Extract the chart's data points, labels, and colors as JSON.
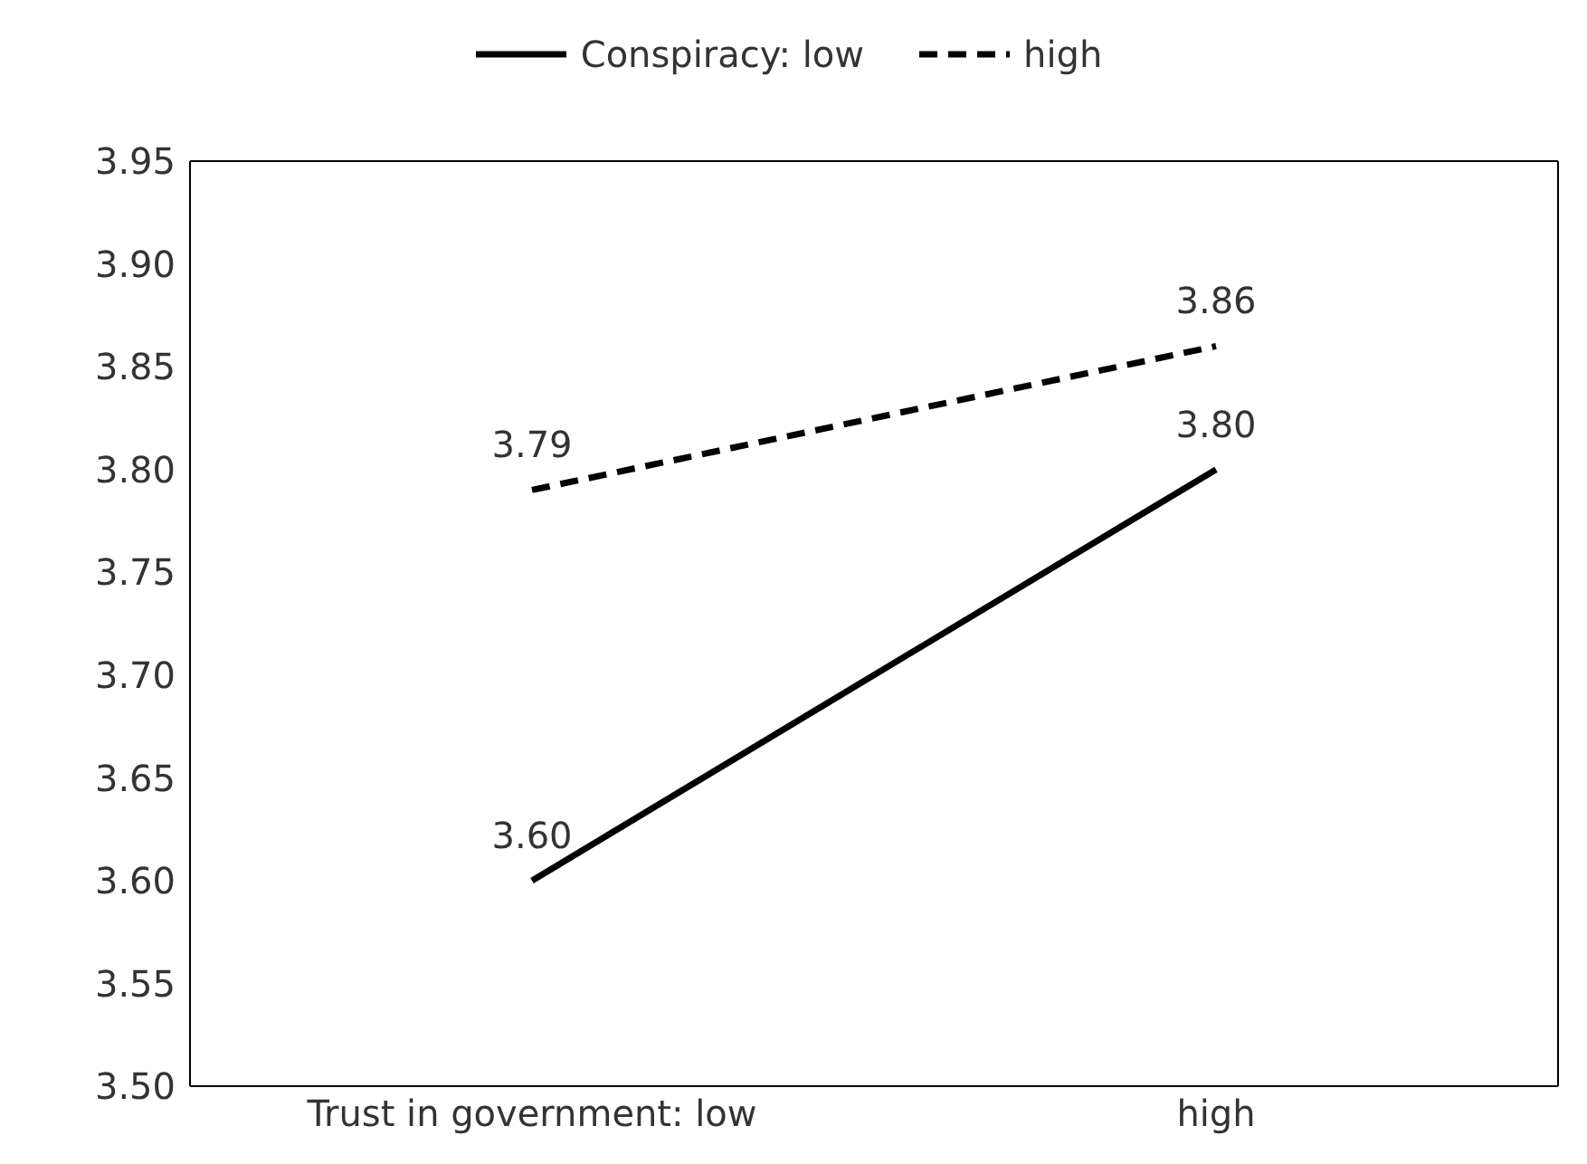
{
  "chart_data": {
    "type": "line",
    "categories": [
      "Trust in government: low",
      "high"
    ],
    "series": [
      {
        "name": "Conspiracy: low",
        "color": "#000000",
        "values": [
          3.6,
          3.8
        ],
        "value_labels": [
          "3.60",
          "3.80"
        ],
        "line_style": "solid"
      },
      {
        "name": "high",
        "color": "#000000",
        "values": [
          3.79,
          3.86
        ],
        "value_labels": [
          "3.79",
          "3.86"
        ],
        "line_style": "dashed"
      }
    ],
    "ylim": [
      3.5,
      3.95
    ],
    "yticks": [
      {
        "value": 3.5,
        "label": "3.50"
      },
      3.55,
      {
        "value": 3.6,
        "label": "3.60"
      },
      3.65,
      {
        "value": 3.7,
        "label": "3.70"
      },
      3.75,
      {
        "value": 3.8,
        "label": "3.80"
      },
      3.85,
      {
        "value": 3.9,
        "label": "3.90"
      },
      3.95
    ],
    "legend": "top",
    "marker": "none"
  }
}
